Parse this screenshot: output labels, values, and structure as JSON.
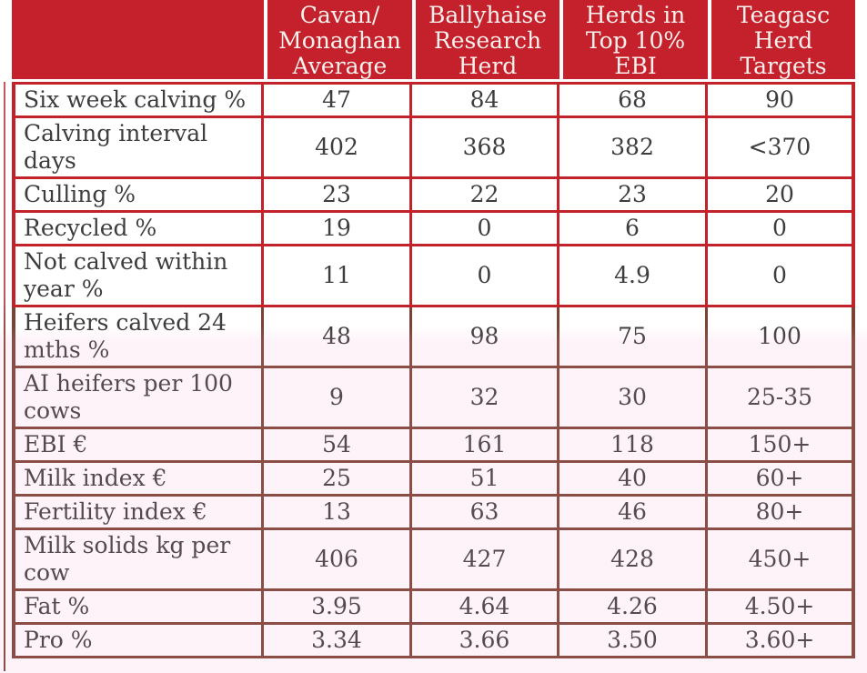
{
  "table": {
    "headers": [
      "",
      "Cavan/\nMonaghan\nAverage",
      "Ballyhaise\nResearch\nHerd",
      "Herds in\nTop 10%\nEBI",
      "Teagasc\nHerd\nTargets"
    ],
    "rows": [
      {
        "label": "Six week calving %",
        "values": [
          "47",
          "84",
          "68",
          "90"
        ]
      },
      {
        "label": "Calving interval\ndays",
        "values": [
          "402",
          "368",
          "382",
          "<370"
        ]
      },
      {
        "label": "Culling %",
        "values": [
          "23",
          "22",
          "23",
          "20"
        ]
      },
      {
        "label": "Recycled %",
        "values": [
          "19",
          "0",
          "6",
          "0"
        ]
      },
      {
        "label": "Not calved within\nyear %",
        "values": [
          "11",
          "0",
          "4.9",
          "0"
        ]
      },
      {
        "label": "Heifers calved 24\nmths %",
        "values": [
          "48",
          "98",
          "75",
          "100"
        ]
      },
      {
        "label": "AI heifers per 100\ncows",
        "values": [
          "9",
          "32",
          "30",
          "25-35"
        ]
      },
      {
        "label": "EBI €",
        "values": [
          "54",
          "161",
          "118",
          "150+"
        ]
      },
      {
        "label": "Milk index €",
        "values": [
          "25",
          "51",
          "40",
          "60+"
        ]
      },
      {
        "label": "Fertility index €",
        "values": [
          "13",
          "63",
          "46",
          "80+"
        ]
      },
      {
        "label": "Milk solids kg per\ncow",
        "values": [
          "406",
          "427",
          "428",
          "450+"
        ]
      },
      {
        "label": "Fat %",
        "values": [
          "3.95",
          "4.64",
          "4.26",
          "4.50+"
        ]
      },
      {
        "label": "Pro %",
        "values": [
          "3.34",
          "3.66",
          "3.50",
          "3.60+"
        ]
      }
    ],
    "red_zone_row_count": 5
  },
  "colors": {
    "header_bg": "#c4212c",
    "header_text": "#f8f1ed",
    "border_red": "#c2232b",
    "border_brown": "#7b4233",
    "text": "#3d3d3d",
    "page_bg": "#ffffff"
  }
}
